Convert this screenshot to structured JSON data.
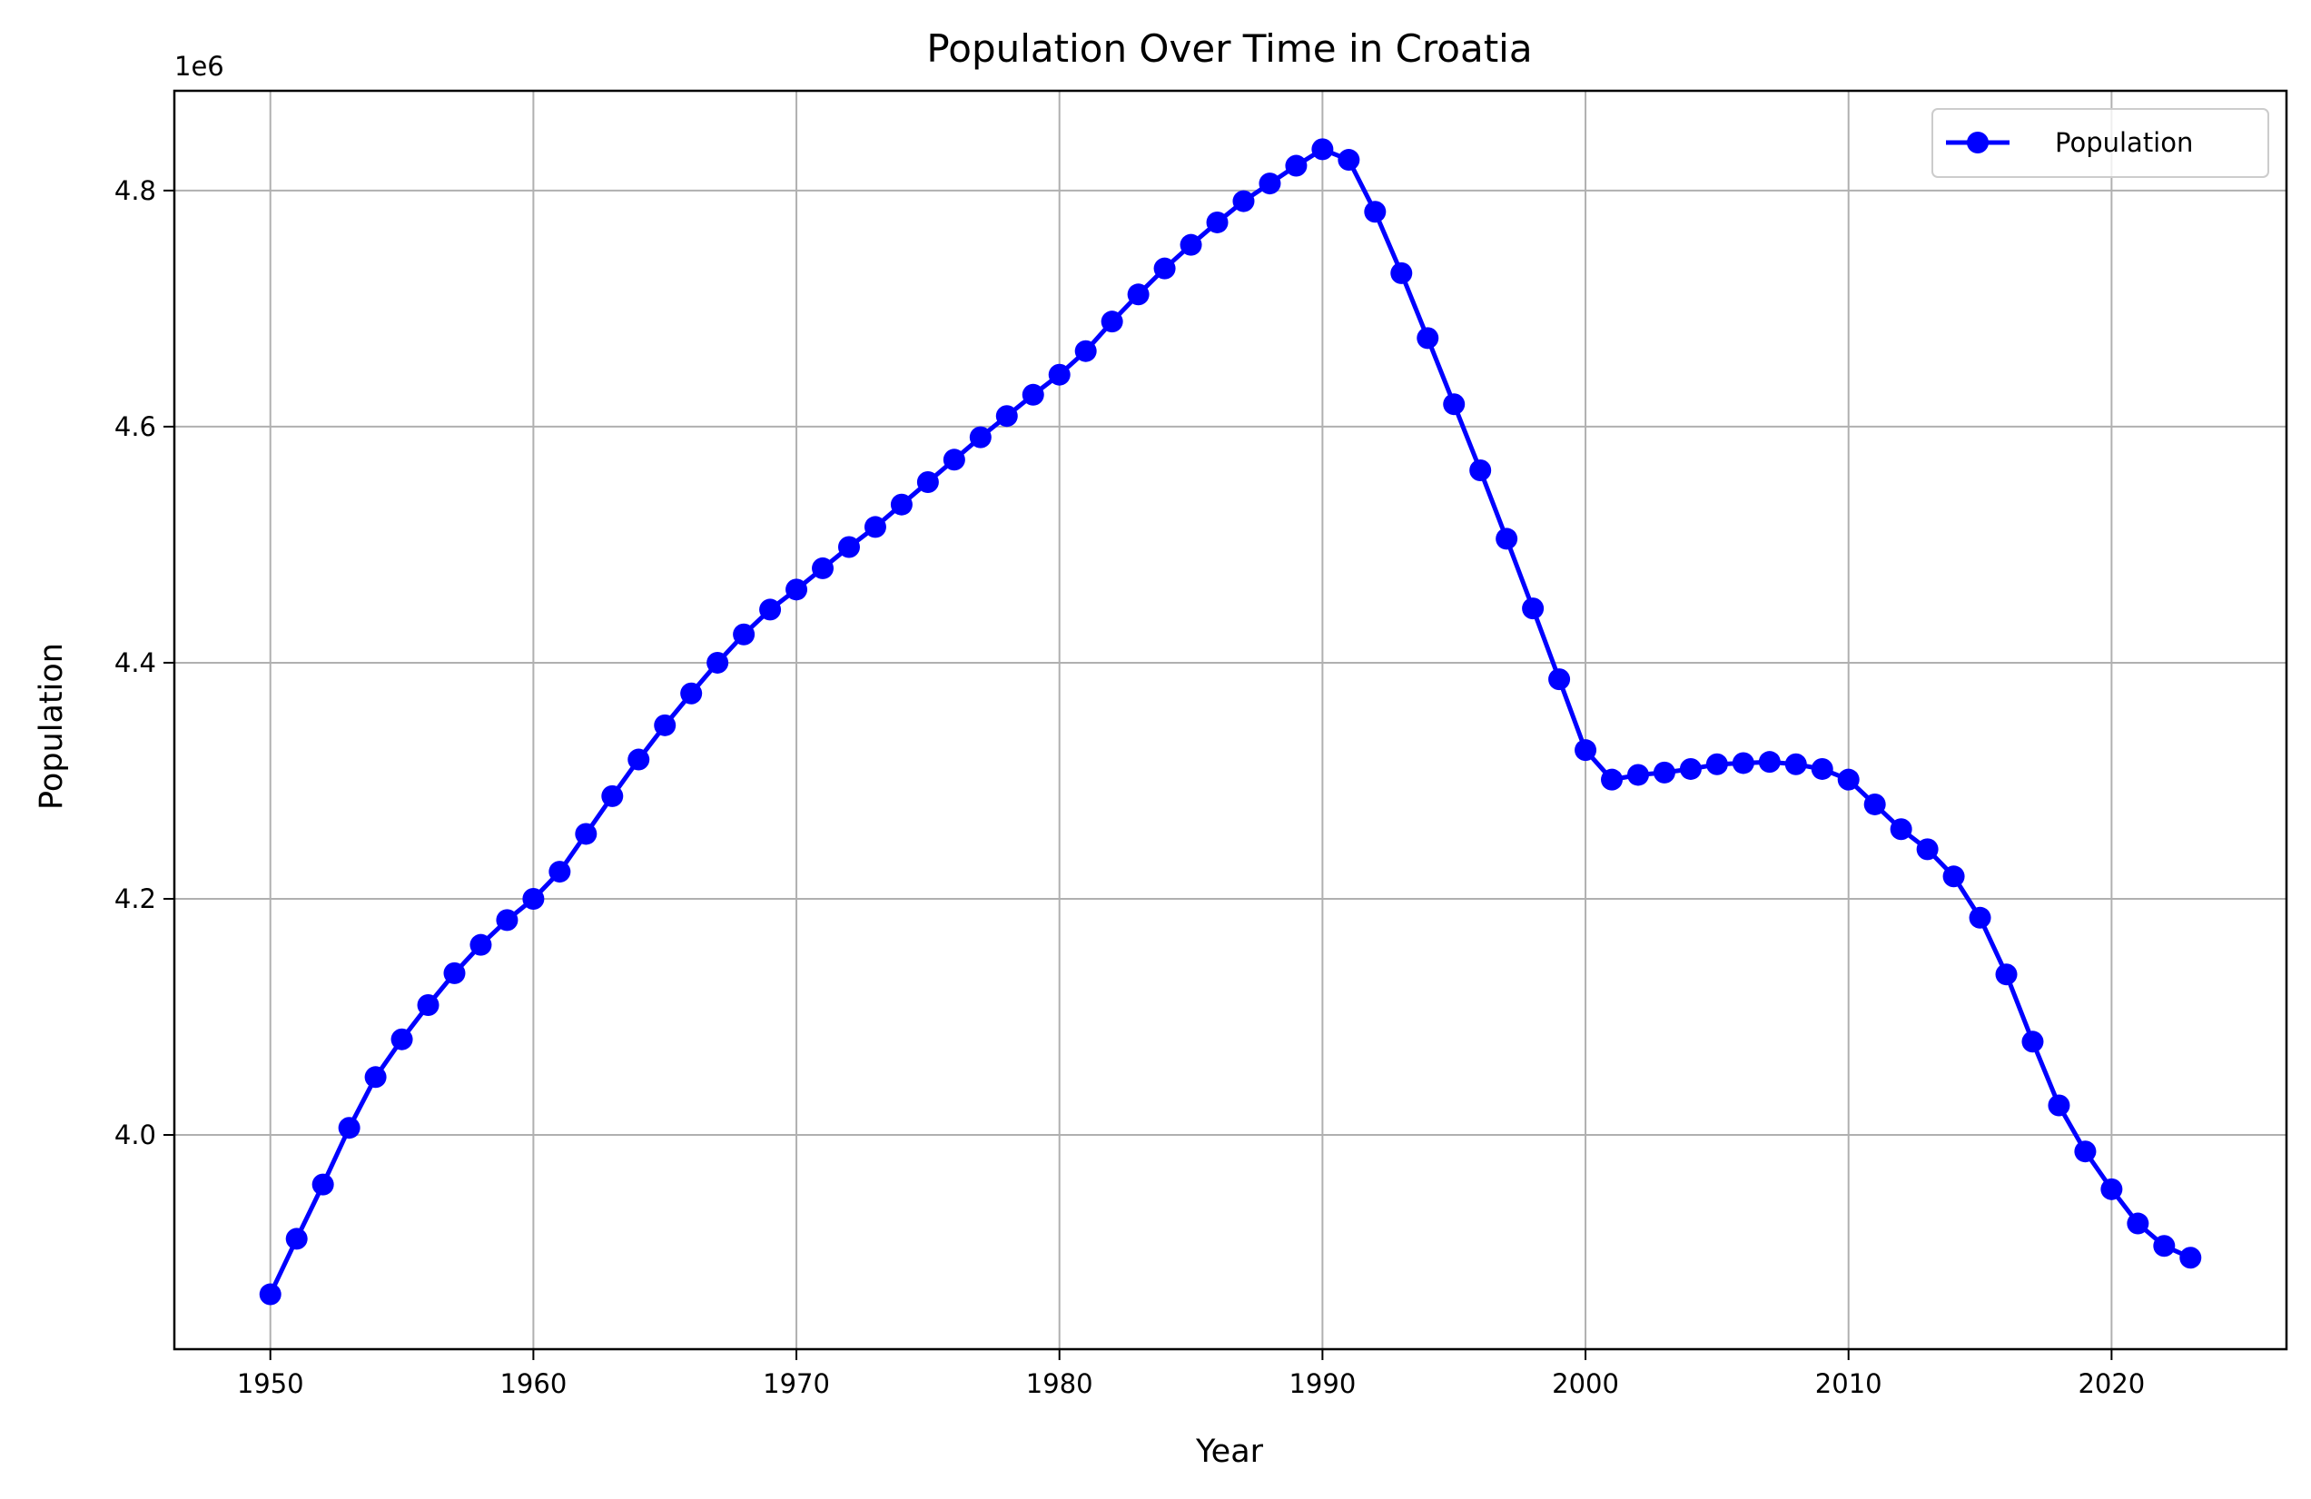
{
  "chart_data": {
    "type": "line",
    "title": "Population Over Time in Croatia",
    "xlabel": "Year",
    "ylabel": "Population",
    "y_offset_label": "1e6",
    "xlim": [
      1946.35,
      2026.65
    ],
    "ylim": [
      3.8185,
      4.8845
    ],
    "x_ticks": [
      1950,
      1960,
      1970,
      1980,
      1990,
      2000,
      2010,
      2020
    ],
    "y_ticks": [
      4.0,
      4.2,
      4.4,
      4.6,
      4.8
    ],
    "y_tick_labels": [
      "4.0",
      "4.2",
      "4.4",
      "4.6",
      "4.8"
    ],
    "grid": true,
    "legend_position": "top-right",
    "line_color": "#0000ff",
    "series": [
      {
        "name": "Population",
        "marker": "circle",
        "x": [
          1950,
          1951,
          1952,
          1953,
          1954,
          1955,
          1956,
          1957,
          1958,
          1959,
          1960,
          1961,
          1962,
          1963,
          1964,
          1965,
          1966,
          1967,
          1968,
          1969,
          1970,
          1971,
          1972,
          1973,
          1974,
          1975,
          1976,
          1977,
          1978,
          1979,
          1980,
          1981,
          1982,
          1983,
          1984,
          1985,
          1986,
          1987,
          1988,
          1989,
          1990,
          1991,
          1992,
          1993,
          1994,
          1995,
          1996,
          1997,
          1998,
          1999,
          2000,
          2001,
          2002,
          2003,
          2004,
          2005,
          2006,
          2007,
          2008,
          2009,
          2010,
          2011,
          2012,
          2013,
          2014,
          2015,
          2016,
          2017,
          2018,
          2019,
          2020,
          2021,
          2022,
          2023
        ],
        "values": [
          3.865,
          3.912,
          3.958,
          4.006,
          4.049,
          4.081,
          4.11,
          4.137,
          4.161,
          4.182,
          4.2,
          4.223,
          4.255,
          4.287,
          4.318,
          4.347,
          4.374,
          4.4,
          4.424,
          4.445,
          4.462,
          4.48,
          4.498,
          4.515,
          4.534,
          4.553,
          4.572,
          4.591,
          4.609,
          4.627,
          4.644,
          4.664,
          4.689,
          4.712,
          4.734,
          4.754,
          4.773,
          4.791,
          4.806,
          4.821,
          4.835,
          4.826,
          4.782,
          4.73,
          4.675,
          4.619,
          4.563,
          4.505,
          4.446,
          4.386,
          4.326,
          4.301,
          4.305,
          4.307,
          4.31,
          4.314,
          4.315,
          4.316,
          4.314,
          4.31,
          4.301,
          4.28,
          4.259,
          4.242,
          4.219,
          4.184,
          4.136,
          4.079,
          4.025,
          3.986,
          3.954,
          3.925,
          3.906,
          3.896
        ]
      }
    ]
  }
}
